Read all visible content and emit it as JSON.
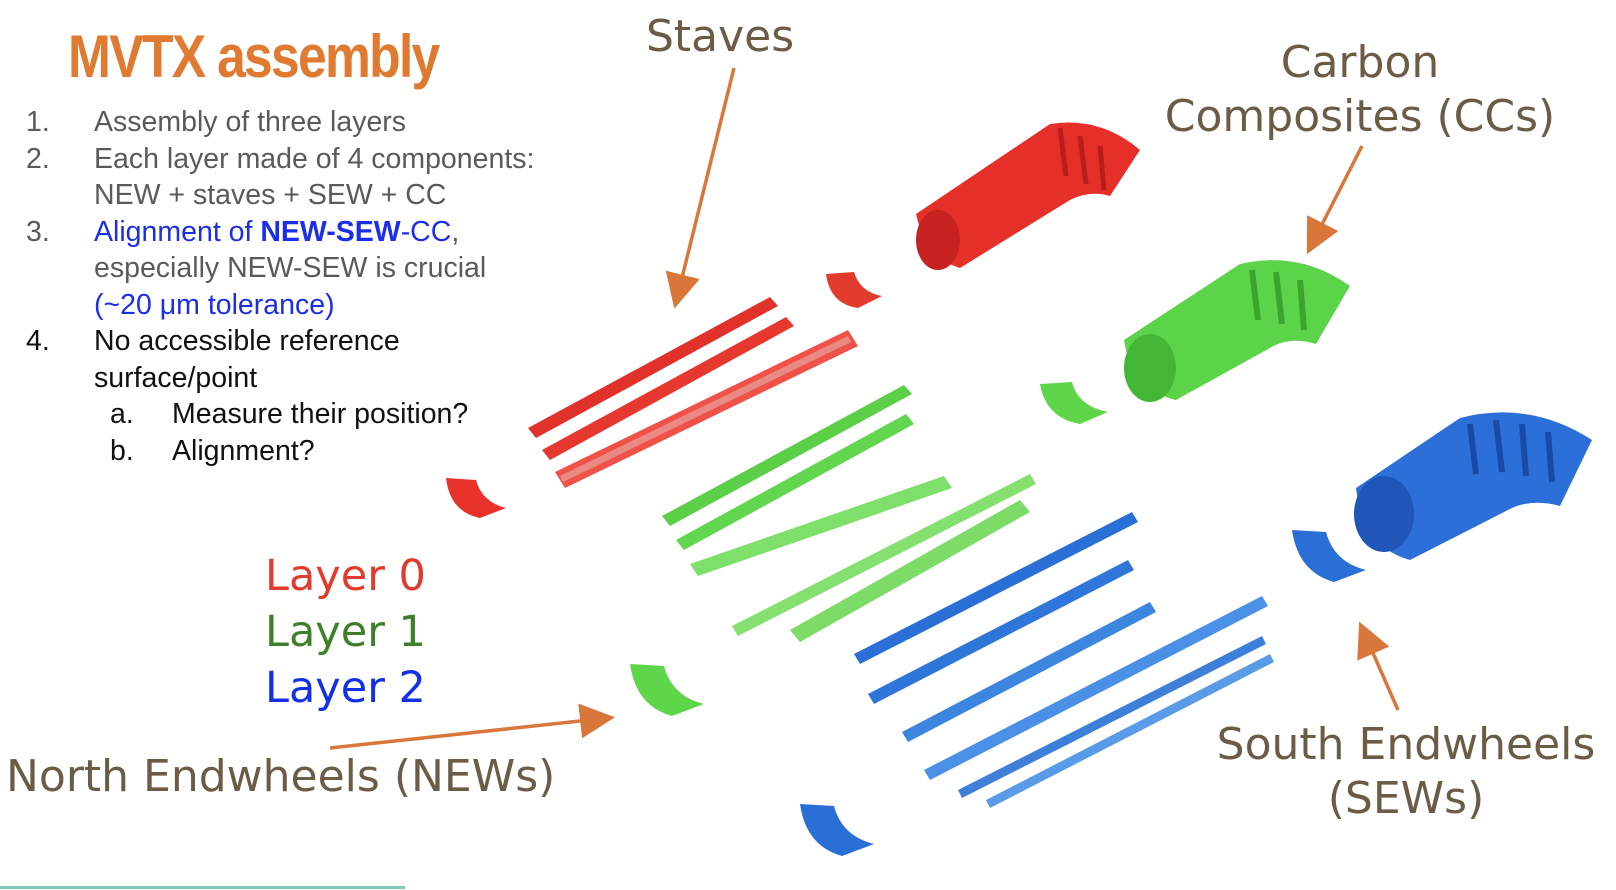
{
  "title": "MVTX assembly",
  "list": [
    {
      "num": "1.",
      "parts": [
        {
          "t": "Assembly of three layers",
          "c": "g"
        }
      ]
    },
    {
      "num": "2.",
      "parts": [
        {
          "t": "Each layer made of 4 components: NEW + staves + SEW + CC",
          "c": "g"
        }
      ]
    },
    {
      "num": "3.",
      "parts": [
        {
          "t": "Alignment of ",
          "c": "blue"
        },
        {
          "t": "NEW-SEW",
          "c": "blue bold"
        },
        {
          "t": "-CC",
          "c": "blue"
        },
        {
          "t": ", especially NEW-SEW is crucial ",
          "c": "g"
        },
        {
          "t": "(~20 μm tolerance)",
          "c": "blue"
        }
      ]
    },
    {
      "num": "4.",
      "parts": [
        {
          "t": "No accessible reference surface/point",
          "c": "blk"
        }
      ]
    }
  ],
  "sublist": [
    {
      "num": "a.",
      "text": "Measure their position?"
    },
    {
      "num": "b.",
      "text": "Alignment?"
    }
  ],
  "legend": [
    {
      "text": "Layer 0",
      "color": "#e03b2c"
    },
    {
      "text": "Layer 1",
      "color": "#3f7f2a"
    },
    {
      "text": "Layer 2",
      "color": "#1230e6"
    }
  ],
  "labels": {
    "staves": "Staves",
    "carbon_line1": "Carbon",
    "carbon_line2": "Composites (CCs)",
    "north": "North Endwheels (NEWs)",
    "south_line1": "South Endwheels",
    "south_line2": "(SEWs)"
  },
  "colors": {
    "arrow": "#d9773a",
    "layer0": "#e8322a",
    "layer1": "#5fd64a",
    "layer2": "#2a6fd6"
  }
}
